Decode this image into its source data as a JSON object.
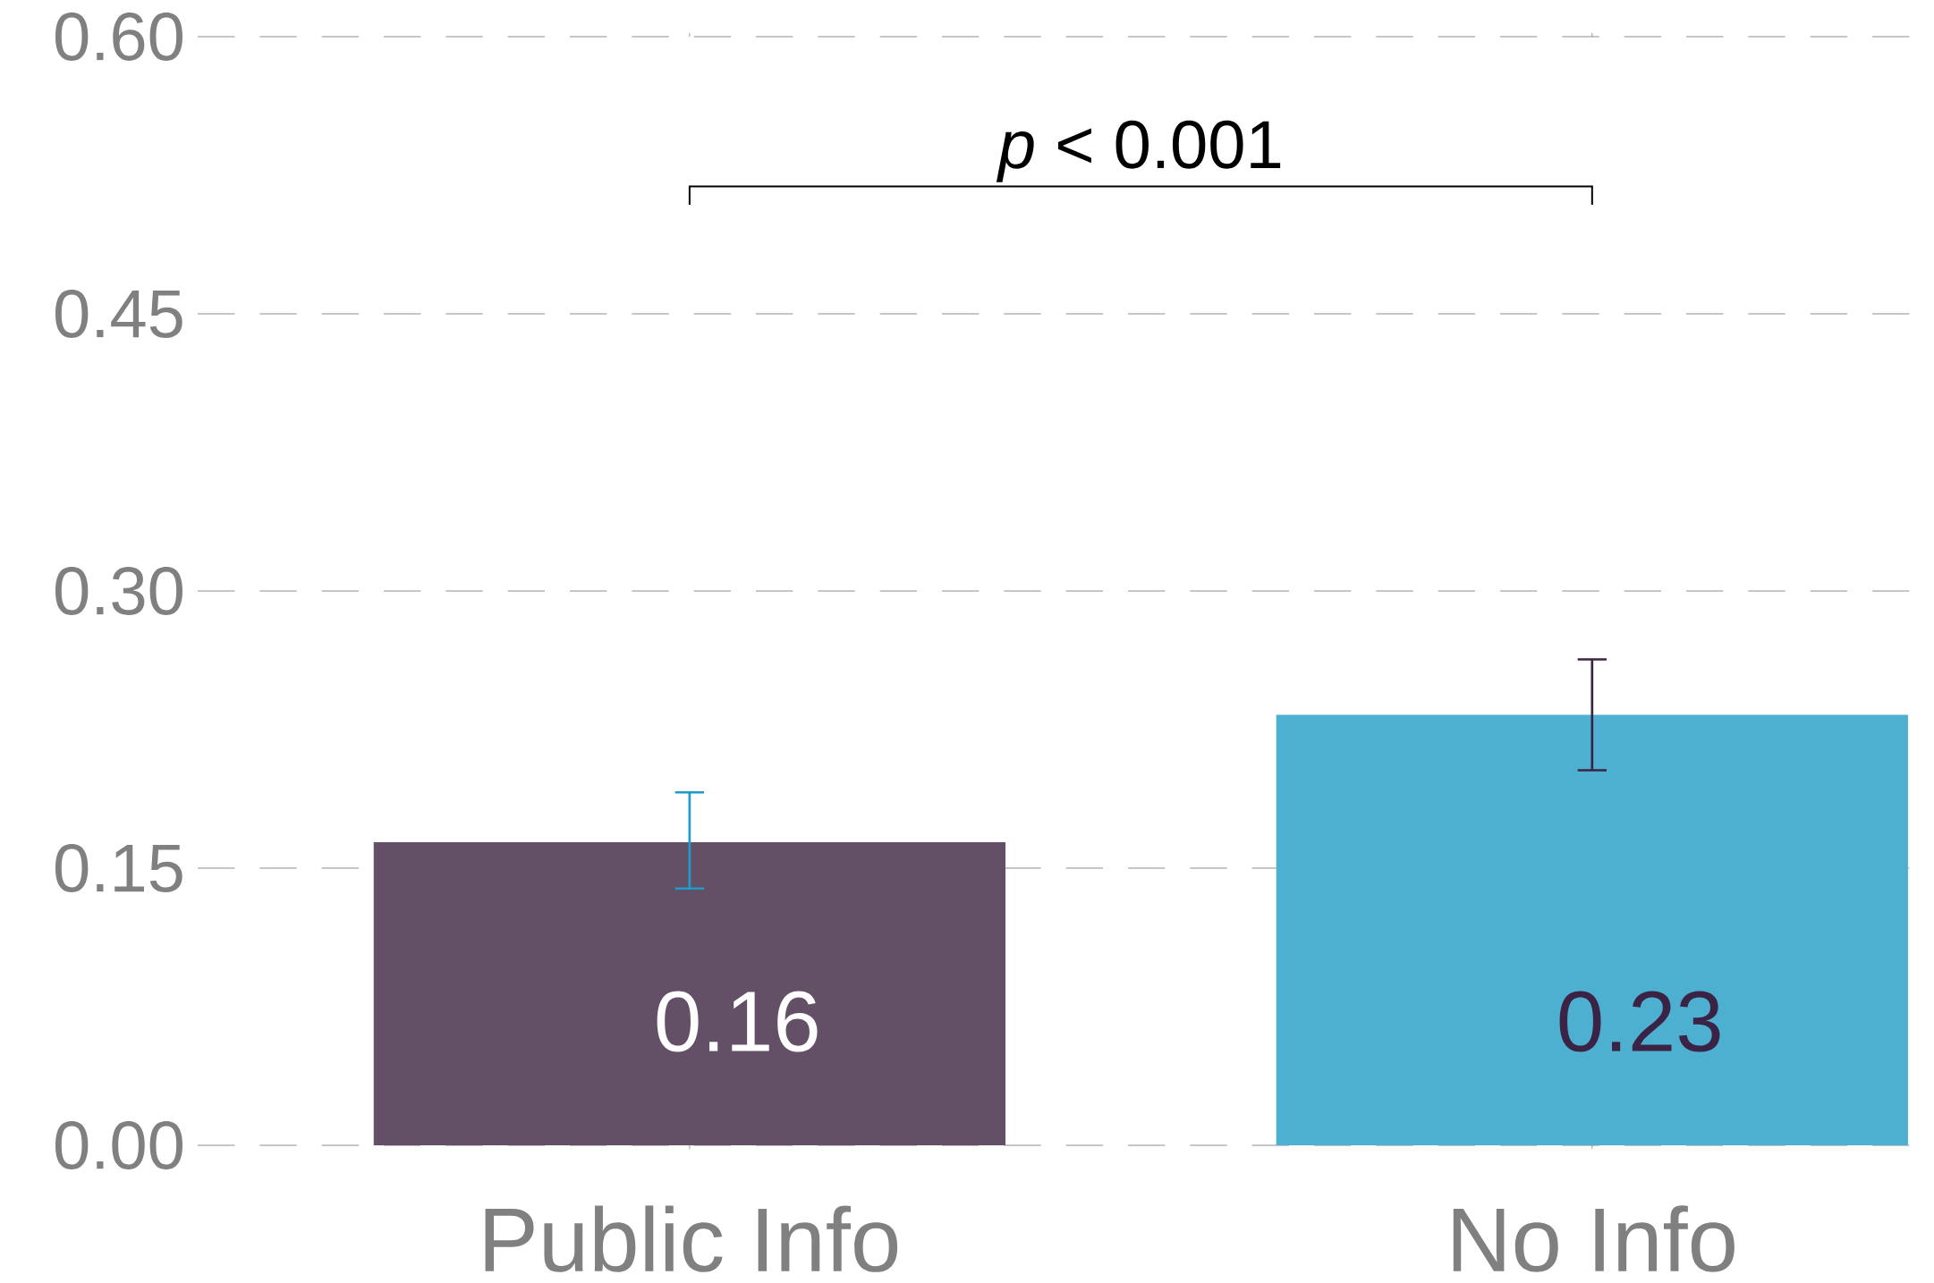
{
  "chart_data": {
    "type": "bar",
    "categories": [
      "Public Info",
      "No Info"
    ],
    "values": [
      0.164,
      0.233
    ],
    "colors": [
      "#634f66",
      "#4eb0d1"
    ],
    "value_labels": [
      "0.16",
      "0.23"
    ],
    "errors": [
      [
        0.139,
        0.191
      ],
      [
        0.203,
        0.263
      ]
    ],
    "ylim": [
      0,
      0.6
    ],
    "yticks": [
      {
        "value": 0,
        "label": "0.00"
      },
      {
        "value": 0.15,
        "label": "0.15"
      },
      {
        "value": 0.3,
        "label": "0.30"
      },
      {
        "value": 0.45,
        "label": "0.45"
      },
      {
        "value": 0.6,
        "label": "0.60"
      }
    ],
    "grid": "y",
    "annotations": [
      "*p* < 0.001"
    ]
  }
}
